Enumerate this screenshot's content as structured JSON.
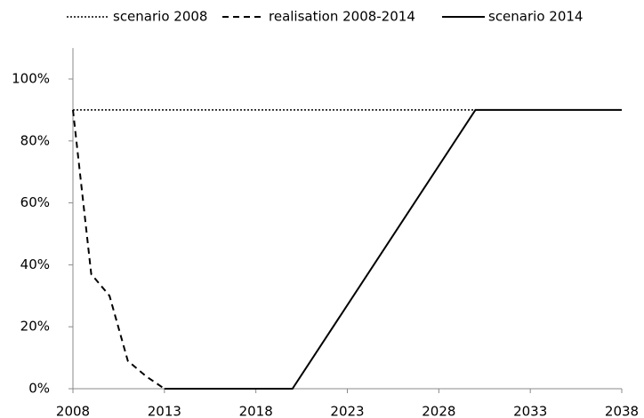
{
  "chart_data": {
    "type": "line",
    "series": [
      {
        "name": "scenario 2008",
        "color": "#000000",
        "style": "dotted",
        "x": [
          2008,
          2030
        ],
        "values": [
          90,
          90
        ]
      },
      {
        "name": "realisation 2008-2014",
        "color": "#000000",
        "style": "dashed",
        "x": [
          2008,
          2009,
          2010,
          2011,
          2012,
          2013
        ],
        "values": [
          90,
          37,
          30,
          9,
          4,
          0
        ]
      },
      {
        "name": "scenario 2014",
        "color": "#000000",
        "style": "solid",
        "x": [
          2013,
          2020,
          2030,
          2038
        ],
        "values": [
          0,
          0,
          90,
          90
        ]
      }
    ],
    "xlim": [
      2008,
      2038
    ],
    "xticks": [
      2008,
      2013,
      2018,
      2023,
      2028,
      2033,
      2038
    ],
    "ylim": [
      0,
      110
    ],
    "yticks": [
      {
        "value": 0,
        "label": "0%"
      },
      {
        "value": 20,
        "label": "20%"
      },
      {
        "value": 40,
        "label": "40%"
      },
      {
        "value": 60,
        "label": "60%"
      },
      {
        "value": 80,
        "label": "80%"
      },
      {
        "value": 100,
        "label": "100%"
      }
    ],
    "legend": "top",
    "grid": false
  }
}
